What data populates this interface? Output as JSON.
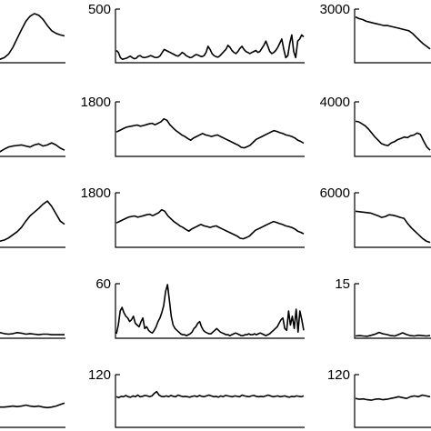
{
  "chart_data": [
    {
      "type": "line",
      "row": 0,
      "col": 0,
      "ymax_label": "",
      "ylim": [
        0,
        1
      ],
      "values": [
        0.03,
        0.03,
        0.03,
        0.04,
        0.05,
        0.08,
        0.15,
        0.28,
        0.45,
        0.62,
        0.78,
        0.88,
        0.93,
        0.9,
        0.82,
        0.7,
        0.6,
        0.55,
        0.52,
        0.5
      ]
    },
    {
      "type": "line",
      "row": 0,
      "col": 1,
      "ymax_label": "500",
      "ylim": [
        0,
        500
      ],
      "values": [
        110,
        90,
        40,
        25,
        30,
        35,
        45,
        55,
        40,
        30,
        35,
        55,
        60,
        45,
        40,
        45,
        50,
        60,
        55,
        45,
        40,
        45,
        60,
        90,
        120,
        110,
        100,
        90,
        80,
        70,
        60,
        55,
        70,
        90,
        80,
        60,
        50,
        40,
        45,
        60,
        70,
        65,
        55,
        50,
        60,
        90,
        150,
        120,
        80,
        60,
        50,
        45,
        60,
        80,
        100,
        120,
        160,
        140,
        110,
        90,
        80,
        100,
        130,
        150,
        120,
        100,
        90,
        80,
        90,
        100,
        110,
        90,
        100,
        130,
        160,
        200,
        150,
        100,
        80,
        90,
        110,
        140,
        180,
        220,
        120,
        40,
        60,
        180,
        260,
        100,
        40,
        200,
        220,
        260,
        240
      ]
    },
    {
      "type": "line",
      "row": 0,
      "col": 2,
      "ymax_label": "3000",
      "ylim": [
        0,
        3000
      ],
      "values": [
        2600,
        2500,
        2450,
        2350,
        2300,
        2250,
        2200,
        2150,
        2100,
        2100,
        2050,
        2000,
        1950,
        1900,
        1850,
        1800,
        1650,
        1450,
        1250,
        1050,
        900,
        750
      ]
    },
    {
      "type": "line",
      "row": 1,
      "col": 0,
      "ymax_label": "",
      "ylim": [
        0,
        1
      ],
      "values": [
        0.08,
        0.06,
        0.04,
        0.05,
        0.07,
        0.12,
        0.16,
        0.18,
        0.19,
        0.2,
        0.18,
        0.16,
        0.2,
        0.22,
        0.18,
        0.2,
        0.24,
        0.2,
        0.14,
        0.1
      ]
    },
    {
      "type": "line",
      "row": 1,
      "col": 1,
      "ymax_label": "1800",
      "ylim": [
        0,
        1800
      ],
      "values": [
        800,
        850,
        900,
        950,
        980,
        1000,
        1020,
        1040,
        1000,
        1020,
        1050,
        1080,
        1100,
        1050,
        1100,
        1150,
        1250,
        1200,
        1050,
        950,
        850,
        780,
        700,
        650,
        580,
        520,
        600,
        650,
        700,
        750,
        700,
        680,
        650,
        680,
        700,
        650,
        600,
        550,
        500,
        450,
        400,
        350,
        280,
        260,
        300,
        350,
        450,
        550,
        600,
        650,
        700,
        750,
        800,
        850,
        820,
        780,
        750,
        700,
        680,
        650,
        600,
        520,
        480,
        420
      ]
    },
    {
      "type": "line",
      "row": 1,
      "col": 2,
      "ymax_label": "4000",
      "ylim": [
        0,
        4000
      ],
      "values": [
        2600,
        2550,
        2400,
        2250,
        2000,
        1700,
        1400,
        1150,
        900,
        800,
        750,
        950,
        1050,
        1200,
        1300,
        1400,
        1350,
        1500,
        1550,
        1700,
        1600,
        1100,
        650,
        400
      ]
    },
    {
      "type": "line",
      "row": 2,
      "col": 0,
      "ymax_label": "",
      "ylim": [
        0,
        1
      ],
      "values": [
        0.12,
        0.1,
        0.08,
        0.09,
        0.1,
        0.12,
        0.16,
        0.22,
        0.28,
        0.36,
        0.48,
        0.58,
        0.65,
        0.72,
        0.8,
        0.86,
        0.76,
        0.62,
        0.48,
        0.42
      ]
    },
    {
      "type": "line",
      "row": 2,
      "col": 1,
      "ymax_label": "1800",
      "ylim": [
        0,
        1800
      ],
      "values": [
        800,
        850,
        900,
        950,
        1000,
        1020,
        1040,
        1000,
        1020,
        1050,
        1080,
        1100,
        1050,
        1100,
        1150,
        1250,
        1200,
        1050,
        950,
        850,
        780,
        700,
        650,
        580,
        520,
        600,
        650,
        700,
        750,
        700,
        680,
        650,
        680,
        700,
        650,
        600,
        550,
        500,
        450,
        400,
        350,
        280,
        260,
        300,
        350,
        450,
        550,
        600,
        650,
        700,
        750,
        800,
        850,
        820,
        780,
        750,
        700,
        680,
        650,
        600,
        520,
        480,
        430
      ]
    },
    {
      "type": "line",
      "row": 2,
      "col": 2,
      "ymax_label": "6000",
      "ylim": [
        0,
        6000
      ],
      "values": [
        4000,
        3950,
        3900,
        3850,
        3800,
        3650,
        3500,
        3300,
        3400,
        3600,
        3550,
        3450,
        3300,
        3200,
        2600,
        2100,
        1700,
        1300,
        900,
        600,
        450
      ]
    },
    {
      "type": "line",
      "row": 3,
      "col": 0,
      "ymax_label": "",
      "ylim": [
        0,
        1
      ],
      "values": [
        0.05,
        0.06,
        0.08,
        0.1,
        0.09,
        0.07,
        0.06,
        0.07,
        0.09,
        0.08,
        0.06,
        0.07,
        0.06,
        0.05,
        0.06,
        0.06,
        0.05,
        0.05,
        0.05,
        0.05
      ]
    },
    {
      "type": "line",
      "row": 3,
      "col": 1,
      "ymax_label": "60",
      "ylim": [
        0,
        60
      ],
      "values": [
        4,
        14,
        30,
        34,
        28,
        24,
        22,
        18,
        20,
        24,
        16,
        14,
        12,
        18,
        22,
        10,
        12,
        8,
        6,
        5,
        8,
        12,
        18,
        22,
        28,
        36,
        52,
        60,
        42,
        24,
        14,
        10,
        8,
        6,
        4,
        3,
        3,
        2,
        3,
        4,
        6,
        10,
        12,
        16,
        18,
        12,
        8,
        6,
        5,
        4,
        4,
        6,
        8,
        10,
        8,
        6,
        5,
        4,
        3,
        3,
        2,
        3,
        4,
        5,
        4,
        3,
        2,
        2,
        3,
        3,
        4,
        3,
        3,
        4,
        3,
        4,
        5,
        4,
        3,
        2,
        3,
        4,
        6,
        8,
        10,
        12,
        16,
        20,
        22,
        10,
        8,
        30,
        14,
        24,
        10,
        32,
        6,
        30,
        20,
        8
      ]
    },
    {
      "type": "line",
      "row": 3,
      "col": 2,
      "ymax_label": "15",
      "ylim": [
        0,
        15
      ],
      "values": [
        0.4,
        0.5,
        0.4,
        0.3,
        0.6,
        0.9,
        1.4,
        1.0,
        0.8,
        0.5,
        0.4,
        0.8,
        1.3,
        0.8,
        0.5,
        0.4,
        0.6,
        0.5,
        0.4,
        0.5
      ]
    },
    {
      "type": "line",
      "row": 4,
      "col": 0,
      "ymax_label": "",
      "ylim": [
        0,
        1
      ],
      "values": [
        0.4,
        0.41,
        0.4,
        0.39,
        0.38,
        0.38,
        0.39,
        0.4,
        0.39,
        0.4,
        0.42,
        0.4,
        0.39,
        0.4,
        0.38,
        0.37,
        0.38,
        0.4,
        0.43,
        0.46
      ]
    },
    {
      "type": "line",
      "row": 4,
      "col": 1,
      "ymax_label": "120",
      "ylim": [
        0,
        120
      ],
      "values": [
        70,
        68,
        71,
        70,
        73,
        70,
        69,
        72,
        70,
        74,
        70,
        71,
        73,
        72,
        70,
        72,
        78,
        82,
        74,
        71,
        70,
        72,
        70,
        73,
        71,
        70,
        74,
        72,
        70,
        71,
        70,
        69,
        71,
        72,
        70,
        73,
        71,
        70,
        72,
        74,
        72,
        70,
        71,
        69,
        72,
        70,
        73,
        72,
        71,
        70,
        72,
        71,
        70,
        74,
        72,
        71,
        70,
        72,
        73,
        71,
        70,
        71,
        70,
        72,
        74,
        72,
        70,
        71,
        72,
        70,
        71,
        72,
        70,
        69,
        71,
        70,
        72,
        71,
        70,
        72
      ]
    },
    {
      "type": "line",
      "row": 4,
      "col": 2,
      "ymax_label": "120",
      "ylim": [
        0,
        120
      ],
      "values": [
        66,
        64,
        65,
        63,
        62,
        64,
        65,
        63,
        64,
        66,
        68,
        70,
        68,
        66,
        70,
        72,
        70,
        74,
        72,
        70
      ]
    }
  ]
}
